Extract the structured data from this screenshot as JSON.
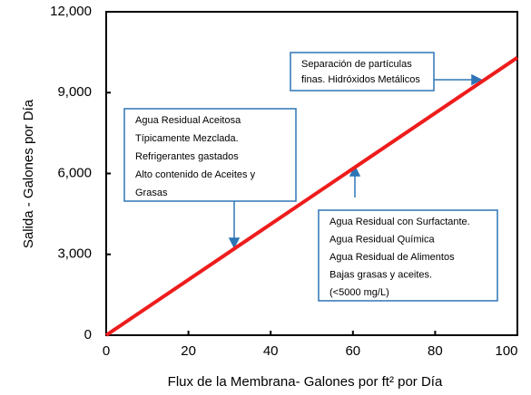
{
  "chart_data": {
    "type": "line",
    "xlabel": "Flux de la Membrana- Galones por ft² por Día",
    "ylabel": "Salida - Galones por Día",
    "x": [
      0,
      100
    ],
    "series": [
      {
        "color": "#ee1c1c",
        "values": [
          0,
          10300
        ]
      }
    ],
    "xlim": [
      0,
      100
    ],
    "ylim": [
      0,
      12000
    ],
    "xticks": [
      0,
      20,
      40,
      60,
      80,
      100
    ],
    "yticks": [
      0,
      {
        "value": 3000,
        "label": "3,000"
      },
      {
        "value": 6000,
        "label": "6,000"
      },
      {
        "value": 9000,
        "label": "9,000"
      },
      {
        "value": 12000,
        "label": "12,000"
      }
    ],
    "annotations": [
      {
        "lines": [
          "Separación de partículas",
          "finas. Hidróxidos Metálicos"
        ]
      },
      {
        "lines": [
          "Agua Residual Aceitosa",
          "Típicamente Mezclada.",
          "Refrigerantes gastados",
          "Alto contenido de Aceites y",
          "Grasas"
        ]
      },
      {
        "lines": [
          "Agua Residual con Surfactante.",
          "Agua Residual Química",
          "Agua Residual de Alimentos",
          "Bajas grasas y aceites.",
          "(<5000 mg/L)"
        ]
      }
    ]
  }
}
